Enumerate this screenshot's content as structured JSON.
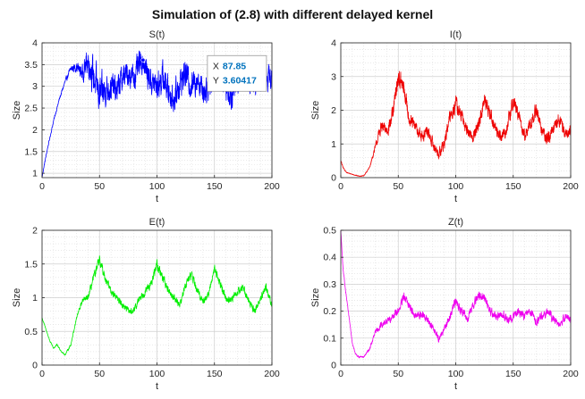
{
  "figure": {
    "suptitle": "Simulation of (2.8) with different delayed kernel",
    "grid": "minor-dotted",
    "background": "#ffffff"
  },
  "chart_data": [
    {
      "type": "line",
      "title": "S(t)",
      "xlabel": "",
      "ylabel": "Size",
      "xlim": [
        0,
        200
      ],
      "ylim": [
        0.9,
        4
      ],
      "xticks": [
        0,
        50,
        100,
        150,
        200
      ],
      "yticks": [
        1,
        1.5,
        2,
        2.5,
        3,
        3.5,
        4
      ],
      "ytick_labels": [
        "1",
        "1.5",
        "2",
        "2.5",
        "3",
        "3.5",
        "4"
      ],
      "color": "#0000ff",
      "series": [
        {
          "name": "S(t)",
          "x": [
            0,
            2,
            5,
            10,
            15,
            20,
            25,
            30,
            35,
            40,
            45,
            50,
            55,
            60,
            65,
            70,
            75,
            80,
            85,
            87.85,
            90,
            95,
            100,
            105,
            110,
            115,
            120,
            125,
            130,
            135,
            140,
            145,
            150,
            155,
            160,
            165,
            170,
            175,
            180,
            185,
            190,
            195,
            200
          ],
          "y": [
            0.9,
            1.2,
            1.6,
            2.2,
            2.7,
            3.1,
            3.4,
            3.45,
            3.3,
            3.6,
            3.2,
            2.8,
            2.9,
            3.0,
            2.9,
            3.2,
            3.3,
            3.2,
            3.5,
            3.60417,
            3.4,
            3.1,
            3.0,
            3.2,
            2.9,
            2.7,
            3.1,
            3.3,
            3.0,
            3.2,
            2.9,
            3.0,
            3.2,
            3.4,
            3.0,
            2.8,
            3.1,
            3.3,
            3.1,
            3.0,
            3.3,
            3.2,
            3.2
          ],
          "amplitude": [
            0,
            0.05,
            0.05,
            0.05,
            0.06,
            0.08,
            0.12,
            0.2,
            0.3,
            0.5,
            0.7,
            0.7,
            0.6,
            0.55,
            0.5,
            0.5,
            0.5,
            0.5,
            0.5,
            0.45,
            0.5,
            0.5,
            0.55,
            0.55,
            0.55,
            0.55,
            0.55,
            0.5,
            0.55,
            0.5,
            0.55,
            0.5,
            0.55,
            0.5,
            0.5,
            0.5,
            0.5,
            0.5,
            0.5,
            0.5,
            0.5,
            0.5,
            0.4
          ]
        }
      ],
      "datatip": {
        "x_label": "X",
        "x_value": "87.85",
        "y_label": "Y",
        "y_value": "3.60417",
        "x": 87.85,
        "y": 3.60417
      }
    },
    {
      "type": "line",
      "title": "I(t)",
      "xlabel": "",
      "ylabel": "Size",
      "xlim": [
        0,
        200
      ],
      "ylim": [
        0,
        4
      ],
      "xticks": [
        0,
        50,
        100,
        150,
        200
      ],
      "yticks": [
        0,
        1,
        2,
        3,
        4
      ],
      "ytick_labels": [
        "0",
        "1",
        "2",
        "3",
        "4"
      ],
      "color": "#ee0000",
      "series": [
        {
          "name": "I(t)",
          "x": [
            0,
            2,
            5,
            10,
            15,
            20,
            25,
            30,
            35,
            40,
            45,
            50,
            55,
            60,
            65,
            70,
            75,
            80,
            85,
            90,
            95,
            100,
            105,
            110,
            115,
            120,
            125,
            130,
            135,
            140,
            145,
            150,
            155,
            160,
            165,
            170,
            175,
            180,
            185,
            190,
            195,
            200
          ],
          "y": [
            0.5,
            0.3,
            0.15,
            0.1,
            0.05,
            0.05,
            0.3,
            0.9,
            1.5,
            1.4,
            1.8,
            3.0,
            2.6,
            1.7,
            1.5,
            1.2,
            1.4,
            1.0,
            0.7,
            1.0,
            1.8,
            2.2,
            1.8,
            1.4,
            1.2,
            1.6,
            2.3,
            1.9,
            1.4,
            1.2,
            1.5,
            2.3,
            1.8,
            1.2,
            1.6,
            2.0,
            1.4,
            1.1,
            1.4,
            1.8,
            1.3,
            1.4
          ],
          "amplitude": [
            0.05,
            0.03,
            0.02,
            0.02,
            0.02,
            0.02,
            0.05,
            0.15,
            0.3,
            0.35,
            0.4,
            0.5,
            0.45,
            0.35,
            0.3,
            0.3,
            0.3,
            0.3,
            0.25,
            0.3,
            0.35,
            0.4,
            0.35,
            0.3,
            0.3,
            0.35,
            0.4,
            0.35,
            0.3,
            0.3,
            0.35,
            0.4,
            0.35,
            0.3,
            0.35,
            0.35,
            0.3,
            0.3,
            0.3,
            0.35,
            0.3,
            0.3
          ]
        }
      ]
    },
    {
      "type": "line",
      "title": "E(t)",
      "xlabel": "t",
      "ylabel": "Size",
      "xlim": [
        0,
        200
      ],
      "ylim": [
        0,
        2
      ],
      "xticks": [
        0,
        50,
        100,
        150,
        200
      ],
      "yticks": [
        0,
        0.5,
        1,
        1.5,
        2
      ],
      "ytick_labels": [
        "0",
        "0.5",
        "1",
        "1.5",
        "2"
      ],
      "color": "#00ee00",
      "series": [
        {
          "name": "E(t)",
          "x": [
            0,
            3,
            7,
            10,
            13,
            17,
            20,
            25,
            30,
            35,
            40,
            45,
            50,
            55,
            60,
            65,
            70,
            75,
            80,
            85,
            90,
            95,
            100,
            105,
            110,
            115,
            120,
            125,
            130,
            135,
            140,
            145,
            150,
            155,
            160,
            165,
            170,
            175,
            180,
            185,
            190,
            195,
            200
          ],
          "y": [
            0.7,
            0.55,
            0.35,
            0.25,
            0.3,
            0.2,
            0.15,
            0.3,
            0.7,
            0.95,
            1.0,
            1.3,
            1.55,
            1.3,
            1.1,
            1.0,
            0.9,
            0.8,
            0.8,
            1.0,
            1.1,
            1.2,
            1.5,
            1.3,
            1.1,
            1.0,
            0.9,
            1.2,
            1.35,
            1.1,
            0.95,
            1.05,
            1.45,
            1.2,
            1.0,
            0.95,
            1.1,
            1.15,
            0.95,
            0.8,
            1.0,
            1.15,
            0.9
          ],
          "amplitude": [
            0.02,
            0.02,
            0.02,
            0.02,
            0.02,
            0.02,
            0.02,
            0.03,
            0.05,
            0.06,
            0.08,
            0.1,
            0.12,
            0.1,
            0.09,
            0.09,
            0.08,
            0.08,
            0.08,
            0.09,
            0.09,
            0.1,
            0.12,
            0.1,
            0.09,
            0.09,
            0.09,
            0.1,
            0.1,
            0.09,
            0.09,
            0.09,
            0.11,
            0.1,
            0.09,
            0.09,
            0.09,
            0.1,
            0.09,
            0.09,
            0.09,
            0.1,
            0.09
          ]
        }
      ]
    },
    {
      "type": "line",
      "title": "Z(t)",
      "xlabel": "t",
      "ylabel": "Size",
      "xlim": [
        0,
        200
      ],
      "ylim": [
        0,
        0.5
      ],
      "xticks": [
        0,
        50,
        100,
        150,
        200
      ],
      "yticks": [
        0,
        0.1,
        0.2,
        0.3,
        0.4,
        0.5
      ],
      "ytick_labels": [
        "0",
        "0.1",
        "0.2",
        "0.3",
        "0.4",
        "0.5"
      ],
      "color": "#ee00ee",
      "series": [
        {
          "name": "Z(t)",
          "x": [
            0,
            2,
            5,
            8,
            10,
            13,
            16,
            20,
            25,
            30,
            35,
            40,
            45,
            50,
            55,
            60,
            65,
            70,
            75,
            80,
            85,
            90,
            95,
            100,
            105,
            110,
            115,
            120,
            125,
            130,
            135,
            140,
            145,
            150,
            155,
            160,
            165,
            170,
            175,
            180,
            185,
            190,
            195,
            200
          ],
          "y": [
            0.5,
            0.35,
            0.25,
            0.15,
            0.08,
            0.04,
            0.03,
            0.03,
            0.06,
            0.12,
            0.15,
            0.16,
            0.18,
            0.2,
            0.25,
            0.22,
            0.18,
            0.19,
            0.17,
            0.14,
            0.1,
            0.13,
            0.18,
            0.24,
            0.2,
            0.17,
            0.22,
            0.26,
            0.25,
            0.2,
            0.18,
            0.19,
            0.17,
            0.18,
            0.2,
            0.18,
            0.2,
            0.16,
            0.18,
            0.2,
            0.17,
            0.15,
            0.18,
            0.17
          ],
          "amplitude": [
            0.01,
            0.01,
            0.01,
            0.005,
            0.005,
            0.005,
            0.005,
            0.005,
            0.01,
            0.015,
            0.02,
            0.02,
            0.02,
            0.025,
            0.03,
            0.025,
            0.025,
            0.025,
            0.025,
            0.02,
            0.02,
            0.02,
            0.025,
            0.03,
            0.025,
            0.025,
            0.025,
            0.03,
            0.03,
            0.025,
            0.025,
            0.025,
            0.025,
            0.025,
            0.025,
            0.025,
            0.025,
            0.025,
            0.025,
            0.025,
            0.025,
            0.02,
            0.025,
            0.025
          ]
        }
      ]
    }
  ]
}
